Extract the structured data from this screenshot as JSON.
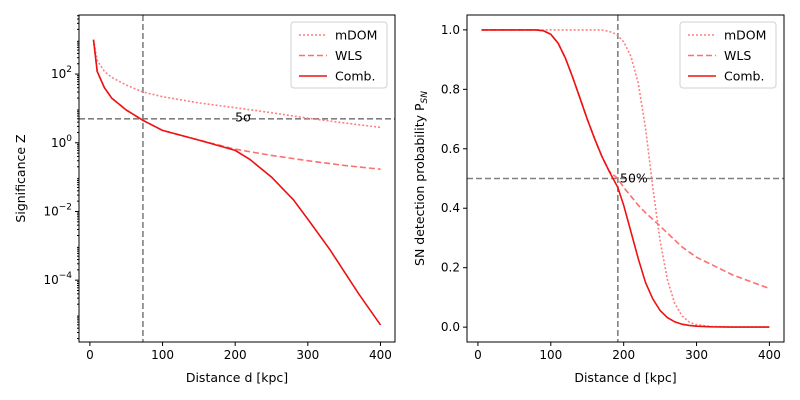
{
  "chart_data": [
    {
      "type": "line",
      "title": "",
      "xlabel": "Distance d [kpc]",
      "ylabel": "Significance Z",
      "xlim": [
        -15,
        420
      ],
      "ylim_log10": [
        -5.8,
        3.72
      ],
      "yscale": "log",
      "xticks": [
        0,
        100,
        200,
        300,
        400
      ],
      "yticks": [
        {
          "exp": 2,
          "label_base": "10",
          "label_exp": "2"
        },
        {
          "exp": 0,
          "label_base": "10",
          "label_exp": "0"
        },
        {
          "exp": -2,
          "label_base": "10",
          "label_exp": "−2"
        },
        {
          "exp": -4,
          "label_base": "10",
          "label_exp": "−4"
        }
      ],
      "legend_position": "top-right",
      "series": [
        {
          "name": "mDOM",
          "style": "dotted",
          "color": "#ff7f7f",
          "x": [
            5,
            10,
            20,
            30,
            50,
            73,
            100,
            150,
            200,
            250,
            300,
            350,
            400
          ],
          "y": [
            1000,
            250,
            120,
            80,
            48,
            30,
            22,
            14.5,
            10.5,
            7.5,
            5.2,
            3.8,
            2.8
          ]
        },
        {
          "name": "WLS",
          "style": "dashed",
          "color": "#ff6f6f",
          "x": [
            5,
            10,
            20,
            30,
            50,
            73,
            100,
            150,
            200,
            250,
            300,
            350,
            400
          ],
          "y": [
            1000,
            120,
            40,
            20,
            9,
            4.5,
            2.3,
            1.2,
            0.65,
            0.43,
            0.3,
            0.22,
            0.17
          ]
        },
        {
          "name": "Comb.",
          "style": "solid",
          "color": "#ee1111",
          "x": [
            5,
            10,
            20,
            30,
            50,
            73,
            100,
            150,
            200,
            220,
            250,
            280,
            300,
            330,
            350,
            370,
            400
          ],
          "y": [
            1000,
            120,
            40,
            20,
            9,
            4.5,
            2.3,
            1.2,
            0.6,
            0.33,
            0.1,
            0.022,
            0.006,
            0.0008,
            0.00018,
            4e-05,
            5e-06
          ]
        }
      ],
      "reference_lines": {
        "vertical_x": 73,
        "horizontal_y": 5
      },
      "annotation": {
        "text": "5σ",
        "x": 200,
        "y": 5.4
      }
    },
    {
      "type": "line",
      "title": "",
      "xlabel": "Distance d [kpc]",
      "ylabel": "SN detection probability P",
      "ylabel_sub": "SN",
      "xlim": [
        -15,
        420
      ],
      "ylim": [
        -0.05,
        1.05
      ],
      "xticks": [
        0,
        100,
        200,
        300,
        400
      ],
      "yticks": [
        0.0,
        0.2,
        0.4,
        0.6,
        0.8,
        1.0
      ],
      "legend_position": "top-right",
      "series": [
        {
          "name": "mDOM",
          "style": "dotted",
          "color": "#ff7f7f",
          "x": [
            5,
            100,
            150,
            170,
            180,
            190,
            200,
            210,
            220,
            230,
            240,
            250,
            260,
            270,
            280,
            290,
            300,
            320,
            350,
            400
          ],
          "y": [
            1.0,
            1.0,
            1.0,
            1.0,
            0.995,
            0.985,
            0.96,
            0.91,
            0.82,
            0.67,
            0.47,
            0.29,
            0.16,
            0.08,
            0.038,
            0.017,
            0.008,
            0.002,
            0.0,
            0.0
          ]
        },
        {
          "name": "WLS",
          "style": "dashed",
          "color": "#ff6f6f",
          "x": [
            5,
            80,
            90,
            100,
            110,
            120,
            130,
            140,
            150,
            160,
            170,
            180,
            192,
            200,
            210,
            220,
            230,
            250,
            280,
            300,
            350,
            400
          ],
          "y": [
            1.0,
            1.0,
            0.997,
            0.985,
            0.955,
            0.905,
            0.84,
            0.77,
            0.7,
            0.635,
            0.575,
            0.525,
            0.5,
            0.47,
            0.44,
            0.41,
            0.385,
            0.34,
            0.27,
            0.235,
            0.175,
            0.13
          ]
        },
        {
          "name": "Comb.",
          "style": "solid",
          "color": "#ee1111",
          "x": [
            5,
            80,
            90,
            100,
            110,
            120,
            130,
            140,
            150,
            160,
            170,
            180,
            192,
            200,
            210,
            220,
            230,
            240,
            250,
            260,
            270,
            280,
            290,
            300,
            320,
            350,
            400
          ],
          "y": [
            1.0,
            1.0,
            0.997,
            0.985,
            0.955,
            0.905,
            0.84,
            0.77,
            0.7,
            0.635,
            0.575,
            0.525,
            0.47,
            0.41,
            0.32,
            0.23,
            0.15,
            0.095,
            0.056,
            0.032,
            0.018,
            0.01,
            0.006,
            0.003,
            0.001,
            0.0,
            0.0
          ]
        }
      ],
      "reference_lines": {
        "vertical_x": 192,
        "horizontal_y": 0.5
      },
      "annotation": {
        "text": "50%",
        "x": 195,
        "y": 0.5
      }
    }
  ]
}
